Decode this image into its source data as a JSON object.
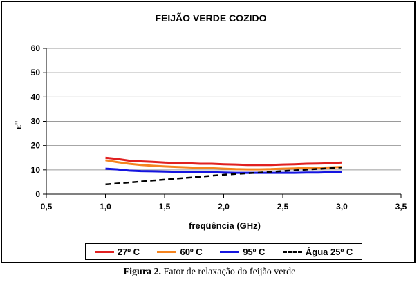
{
  "chart_data": {
    "type": "line",
    "title": "FEIJÃO VERDE COZIDO",
    "xlabel": "freqüência (GHz)",
    "ylabel": "ε''",
    "xlim": [
      0.5,
      3.5
    ],
    "ylim": [
      0,
      60
    ],
    "x_ticks": [
      "0,5",
      "1,0",
      "1,5",
      "2,0",
      "2,5",
      "3,0",
      "3,5"
    ],
    "y_ticks": [
      "0",
      "10",
      "20",
      "30",
      "40",
      "50",
      "60"
    ],
    "grid": "horizontal",
    "legend_position": "bottom",
    "series": [
      {
        "name": "27º C",
        "color": "#e02020",
        "style": "solid",
        "x": [
          1.0,
          1.1,
          1.2,
          1.3,
          1.4,
          1.5,
          1.6,
          1.7,
          1.8,
          1.9,
          2.0,
          2.1,
          2.2,
          2.3,
          2.4,
          2.5,
          2.6,
          2.7,
          2.8,
          2.9,
          3.0
        ],
        "y": [
          15.0,
          14.5,
          13.8,
          13.5,
          13.3,
          13.0,
          12.8,
          12.7,
          12.5,
          12.5,
          12.3,
          12.2,
          12.0,
          12.0,
          12.0,
          12.2,
          12.3,
          12.5,
          12.6,
          12.7,
          13.0
        ]
      },
      {
        "name": "60º C",
        "color": "#f5841f",
        "style": "solid",
        "x": [
          1.0,
          1.1,
          1.2,
          1.3,
          1.4,
          1.5,
          1.6,
          1.7,
          1.8,
          1.9,
          2.0,
          2.1,
          2.2,
          2.3,
          2.4,
          2.5,
          2.6,
          2.7,
          2.8,
          2.9,
          3.0
        ],
        "y": [
          14.0,
          13.2,
          12.5,
          12.0,
          11.7,
          11.4,
          11.2,
          11.0,
          10.8,
          10.7,
          10.5,
          10.3,
          10.2,
          10.2,
          10.3,
          10.5,
          10.6,
          10.8,
          10.9,
          11.0,
          11.2
        ]
      },
      {
        "name": "95º C",
        "color": "#1515e0",
        "style": "solid",
        "x": [
          1.0,
          1.1,
          1.2,
          1.3,
          1.4,
          1.5,
          1.6,
          1.7,
          1.8,
          1.9,
          2.0,
          2.1,
          2.2,
          2.3,
          2.4,
          2.5,
          2.6,
          2.7,
          2.8,
          2.9,
          3.0
        ],
        "y": [
          10.5,
          10.2,
          9.7,
          9.5,
          9.4,
          9.3,
          9.2,
          9.1,
          9.0,
          9.0,
          8.9,
          8.8,
          8.8,
          8.8,
          8.8,
          8.8,
          8.8,
          8.9,
          8.9,
          9.0,
          9.2
        ]
      },
      {
        "name": "Água 25º C",
        "color": "#000000",
        "style": "dashed",
        "x": [
          1.0,
          1.1,
          1.2,
          1.3,
          1.4,
          1.5,
          1.6,
          1.7,
          1.8,
          1.9,
          2.0,
          2.1,
          2.2,
          2.3,
          2.4,
          2.5,
          2.6,
          2.7,
          2.8,
          2.9,
          3.0
        ],
        "y": [
          4.0,
          4.4,
          4.8,
          5.2,
          5.6,
          6.0,
          6.4,
          6.8,
          7.2,
          7.6,
          8.0,
          8.3,
          8.6,
          8.9,
          9.2,
          9.5,
          9.8,
          10.1,
          10.4,
          10.7,
          11.0
        ]
      }
    ]
  },
  "caption": {
    "label": "Figura 2.",
    "text": " Fator de relaxação do feijão verde"
  }
}
